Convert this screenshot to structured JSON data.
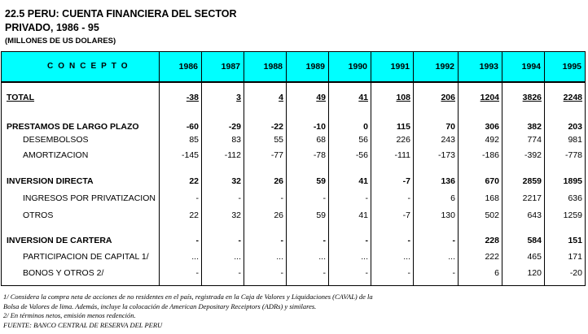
{
  "title": {
    "line1": "22.5  PERU: CUENTA FINANCIERA DEL SECTOR",
    "line2": "PRIVADO, 1986 - 95",
    "units": "(MILLONES DE US DOLARES)"
  },
  "table": {
    "concept_header": "CONCEPTO",
    "years": [
      "1986",
      "1987",
      "1988",
      "1989",
      "1990",
      "1991",
      "1992",
      "1993",
      "1994",
      "1995"
    ],
    "rows": [
      {
        "label": "TOTAL",
        "style": "total",
        "values": [
          "-38",
          "3",
          "4",
          "49",
          "41",
          "108",
          "206",
          "1204",
          "3826",
          "2248"
        ]
      },
      {
        "label": "PRESTAMOS DE LARGO PLAZO",
        "style": "bold",
        "values": [
          "-60",
          "-29",
          "-22",
          "-10",
          "0",
          "115",
          "70",
          "306",
          "382",
          "203"
        ]
      },
      {
        "label": "DESEMBOLSOS",
        "style": "indent",
        "values": [
          "85",
          "83",
          "55",
          "68",
          "56",
          "226",
          "243",
          "492",
          "774",
          "981"
        ]
      },
      {
        "label": "AMORTIZACION",
        "style": "indent",
        "values": [
          "-145",
          "-112",
          "-77",
          "-78",
          "-56",
          "-111",
          "-173",
          "-186",
          "-392",
          "-778"
        ]
      },
      {
        "label": "INVERSION DIRECTA",
        "style": "bold",
        "values": [
          "22",
          "32",
          "26",
          "59",
          "41",
          "-7",
          "136",
          "670",
          "2859",
          "1895"
        ]
      },
      {
        "label": "INGRESOS POR PRIVATIZACION",
        "style": "indent",
        "values": [
          "-",
          "-",
          "-",
          "-",
          "-",
          "-",
          "6",
          "168",
          "2217",
          "636"
        ]
      },
      {
        "label": "OTROS",
        "style": "indent",
        "values": [
          "22",
          "32",
          "26",
          "59",
          "41",
          "-7",
          "130",
          "502",
          "643",
          "1259"
        ]
      },
      {
        "label": "INVERSION DE CARTERA",
        "style": "bold",
        "values": [
          "-",
          "-",
          "-",
          "-",
          "-",
          "-",
          "-",
          "228",
          "584",
          "151"
        ]
      },
      {
        "label": "PARTICIPACION DE CAPITAL 1/",
        "style": "indent",
        "values": [
          "...",
          "...",
          "...",
          "...",
          "...",
          "...",
          "...",
          "222",
          "465",
          "171"
        ]
      },
      {
        "label": "BONOS Y OTROS 2/",
        "style": "indent",
        "values": [
          "-",
          "-",
          "-",
          "-",
          "-",
          "-",
          "-",
          "6",
          "120",
          "-20"
        ]
      }
    ]
  },
  "notes": {
    "n1a": "1/ Considera la compra neta de acciones de no residentes en el país, registrada en la Caja de Valores y Liquidaciones (CAVAL) de la",
    "n1b": "Bolsa de Valores de lima. Además, incluye la colocación de American Depositary Receiptors (ADRs) y similares.",
    "n2": "2/ En términos netos, emisión menos redención.",
    "source": "FUENTE: BANCO CENTRAL DE RESERVA DEL PERU"
  }
}
